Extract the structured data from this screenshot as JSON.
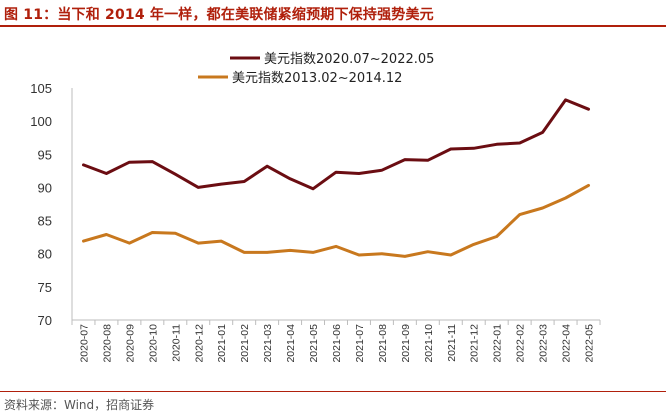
{
  "figure": {
    "title": "图 11：当下和 2014 年一样，都在美联储紧缩预期下保持强势美元",
    "source": "资料来源：Wind，招商证券"
  },
  "chart_data": {
    "type": "line",
    "title": "",
    "xlabel": "",
    "ylabel": "",
    "ylim": [
      70,
      105
    ],
    "yticks": [
      70,
      75,
      80,
      85,
      90,
      95,
      100,
      105
    ],
    "grid": false,
    "legend_position": "top-center",
    "categories": [
      "2020-07",
      "2020-08",
      "2020-09",
      "2020-10",
      "2020-11",
      "2020-12",
      "2021-01",
      "2021-02",
      "2021-03",
      "2021-04",
      "2021-05",
      "2021-06",
      "2021-07",
      "2021-08",
      "2021-09",
      "2021-10",
      "2021-11",
      "2021-12",
      "2022-01",
      "2022-02",
      "2022-03",
      "2022-04",
      "2022-05"
    ],
    "series": [
      {
        "name": "美元指数2020.07~2022.05",
        "color": "#6b0d12",
        "values": [
          93.4,
          92.1,
          93.8,
          93.9,
          92.0,
          90.0,
          90.5,
          90.9,
          93.2,
          91.3,
          89.8,
          92.3,
          92.1,
          92.6,
          94.2,
          94.1,
          95.8,
          95.9,
          96.5,
          96.7,
          98.3,
          103.2,
          101.8
        ]
      },
      {
        "name": "美元指数2013.02~2014.12",
        "color": "#c8781e",
        "values": [
          81.9,
          82.9,
          81.6,
          83.2,
          83.1,
          81.6,
          81.9,
          80.2,
          80.2,
          80.5,
          80.2,
          81.1,
          79.8,
          80.0,
          79.6,
          80.3,
          79.8,
          81.4,
          82.6,
          85.9,
          86.9,
          88.4,
          90.3
        ]
      }
    ]
  }
}
